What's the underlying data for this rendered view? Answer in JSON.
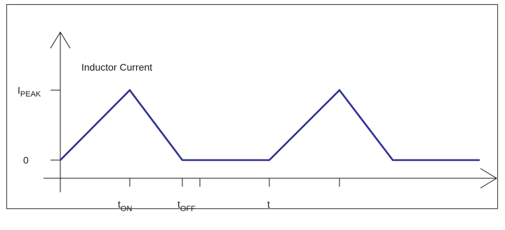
{
  "diagram": {
    "title": "Inductor Current",
    "y_labels": {
      "peak_main": "I",
      "peak_sub": "PEAK",
      "zero": "0"
    },
    "x_labels": {
      "ton_main": "t",
      "ton_sub": "ON",
      "toff_main": "t",
      "toff_sub": "OFF",
      "t": "t"
    },
    "colors": {
      "waveform": "#2e3192",
      "axes": "#1a1a1a",
      "border": "#4d4d4d"
    }
  }
}
